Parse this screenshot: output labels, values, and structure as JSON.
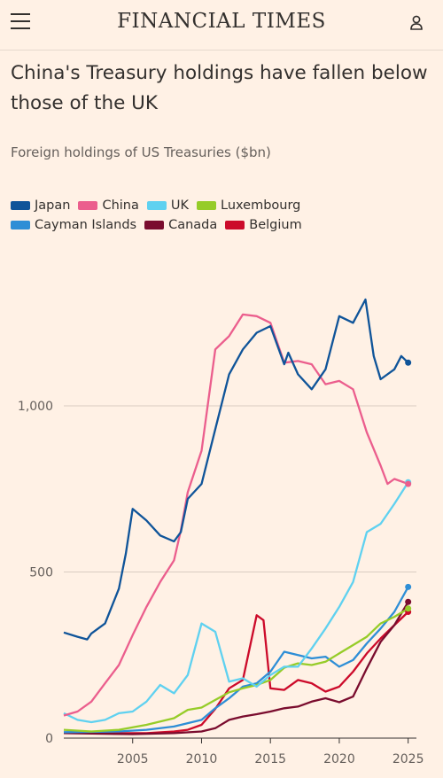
{
  "header": {
    "brand": "FINANCIAL TIMES",
    "menu_icon": "hamburger-menu-icon",
    "user_icon": "user-account-icon"
  },
  "colors": {
    "background": "#fff1e5",
    "gridline": "#d9ccc1"
  },
  "chart_data": {
    "type": "line",
    "title": "China's Treasury holdings have fallen below those of the UK",
    "subtitle": "Foreign holdings of US Treasuries ($bn)",
    "xlabel": "",
    "ylabel": "",
    "x_ticks": [
      "2005",
      "2010",
      "2015",
      "2020",
      "2025"
    ],
    "y_ticks": [
      "0",
      "500",
      "1,000"
    ],
    "xlim": [
      2000,
      2025.6
    ],
    "ylim": [
      0,
      1300
    ],
    "grid": "horizontal",
    "legend_position": "top-left",
    "series": [
      {
        "name": "Japan",
        "color": "#0f5499",
        "points": [
          [
            2000,
            318
          ],
          [
            2001,
            305
          ],
          [
            2001.7,
            297
          ],
          [
            2002,
            315
          ],
          [
            2003,
            345
          ],
          [
            2004,
            450
          ],
          [
            2004.5,
            555
          ],
          [
            2005,
            690
          ],
          [
            2006,
            655
          ],
          [
            2007,
            610
          ],
          [
            2008,
            592
          ],
          [
            2008.5,
            620
          ],
          [
            2009,
            720
          ],
          [
            2010,
            765
          ],
          [
            2011,
            930
          ],
          [
            2012,
            1095
          ],
          [
            2013,
            1170
          ],
          [
            2014,
            1220
          ],
          [
            2015,
            1240
          ],
          [
            2016,
            1125
          ],
          [
            2016.3,
            1160
          ],
          [
            2017,
            1095
          ],
          [
            2018,
            1050
          ],
          [
            2019,
            1110
          ],
          [
            2020,
            1270
          ],
          [
            2021,
            1250
          ],
          [
            2021.9,
            1320
          ],
          [
            2022.5,
            1150
          ],
          [
            2023,
            1080
          ],
          [
            2024,
            1110
          ],
          [
            2024.5,
            1150
          ],
          [
            2025,
            1130
          ]
        ]
      },
      {
        "name": "China",
        "color": "#eb5e8d",
        "points": [
          [
            2000,
            68
          ],
          [
            2001,
            80
          ],
          [
            2002,
            110
          ],
          [
            2003,
            165
          ],
          [
            2004,
            220
          ],
          [
            2005,
            310
          ],
          [
            2006,
            395
          ],
          [
            2007,
            470
          ],
          [
            2008,
            535
          ],
          [
            2008.5,
            625
          ],
          [
            2009,
            740
          ],
          [
            2010,
            865
          ],
          [
            2011,
            1170
          ],
          [
            2012,
            1210
          ],
          [
            2013,
            1275
          ],
          [
            2014,
            1270
          ],
          [
            2015,
            1250
          ],
          [
            2016,
            1130
          ],
          [
            2017,
            1135
          ],
          [
            2018,
            1125
          ],
          [
            2019,
            1065
          ],
          [
            2020,
            1075
          ],
          [
            2021,
            1050
          ],
          [
            2022,
            920
          ],
          [
            2023,
            820
          ],
          [
            2023.5,
            765
          ],
          [
            2024,
            780
          ],
          [
            2025,
            765
          ]
        ]
      },
      {
        "name": "UK",
        "color": "#5fd1f0",
        "points": [
          [
            2000,
            75
          ],
          [
            2001,
            55
          ],
          [
            2002,
            48
          ],
          [
            2003,
            55
          ],
          [
            2004,
            75
          ],
          [
            2005,
            80
          ],
          [
            2006,
            110
          ],
          [
            2007,
            160
          ],
          [
            2008,
            135
          ],
          [
            2009,
            190
          ],
          [
            2010,
            345
          ],
          [
            2011,
            320
          ],
          [
            2012,
            170
          ],
          [
            2013,
            180
          ],
          [
            2014,
            155
          ],
          [
            2015,
            190
          ],
          [
            2016,
            215
          ],
          [
            2017,
            215
          ],
          [
            2018,
            270
          ],
          [
            2019,
            330
          ],
          [
            2020,
            395
          ],
          [
            2021,
            470
          ],
          [
            2022,
            620
          ],
          [
            2023,
            645
          ],
          [
            2024,
            705
          ],
          [
            2025,
            770
          ]
        ]
      },
      {
        "name": "Luxembourg",
        "color": "#96cc28",
        "points": [
          [
            2000,
            25
          ],
          [
            2002,
            20
          ],
          [
            2004,
            25
          ],
          [
            2006,
            40
          ],
          [
            2008,
            60
          ],
          [
            2009,
            85
          ],
          [
            2010,
            92
          ],
          [
            2011,
            115
          ],
          [
            2012,
            138
          ],
          [
            2013,
            150
          ],
          [
            2014,
            160
          ],
          [
            2015,
            175
          ],
          [
            2016,
            212
          ],
          [
            2017,
            225
          ],
          [
            2018,
            220
          ],
          [
            2019,
            230
          ],
          [
            2020,
            255
          ],
          [
            2021,
            280
          ],
          [
            2022,
            305
          ],
          [
            2023,
            345
          ],
          [
            2024,
            365
          ],
          [
            2025,
            390
          ]
        ]
      },
      {
        "name": "Cayman Islands",
        "color": "#2e8ed6",
        "points": [
          [
            2000,
            18
          ],
          [
            2004,
            20
          ],
          [
            2006,
            25
          ],
          [
            2008,
            35
          ],
          [
            2010,
            55
          ],
          [
            2011,
            90
          ],
          [
            2012,
            120
          ],
          [
            2013,
            155
          ],
          [
            2014,
            165
          ],
          [
            2015,
            200
          ],
          [
            2016,
            260
          ],
          [
            2017,
            250
          ],
          [
            2018,
            240
          ],
          [
            2019,
            245
          ],
          [
            2020,
            215
          ],
          [
            2021,
            235
          ],
          [
            2022,
            285
          ],
          [
            2023,
            330
          ],
          [
            2024,
            380
          ],
          [
            2025,
            455
          ]
        ]
      },
      {
        "name": "Canada",
        "color": "#7a0c2e",
        "points": [
          [
            2000,
            15
          ],
          [
            2005,
            12
          ],
          [
            2008,
            15
          ],
          [
            2010,
            20
          ],
          [
            2011,
            30
          ],
          [
            2012,
            55
          ],
          [
            2013,
            65
          ],
          [
            2014,
            72
          ],
          [
            2015,
            80
          ],
          [
            2016,
            90
          ],
          [
            2017,
            95
          ],
          [
            2018,
            110
          ],
          [
            2019,
            120
          ],
          [
            2020,
            108
          ],
          [
            2021,
            125
          ],
          [
            2022,
            210
          ],
          [
            2023,
            290
          ],
          [
            2024,
            340
          ],
          [
            2025,
            410
          ]
        ]
      },
      {
        "name": "Belgium",
        "color": "#cc0a2a",
        "points": [
          [
            2000,
            15
          ],
          [
            2004,
            15
          ],
          [
            2006,
            15
          ],
          [
            2008,
            20
          ],
          [
            2009,
            25
          ],
          [
            2010,
            40
          ],
          [
            2011,
            88
          ],
          [
            2012,
            150
          ],
          [
            2013,
            175
          ],
          [
            2014,
            370
          ],
          [
            2014.5,
            355
          ],
          [
            2015,
            150
          ],
          [
            2016,
            145
          ],
          [
            2017,
            175
          ],
          [
            2018,
            165
          ],
          [
            2019,
            140
          ],
          [
            2020,
            155
          ],
          [
            2021,
            200
          ],
          [
            2022,
            255
          ],
          [
            2023,
            300
          ],
          [
            2024,
            340
          ],
          [
            2025,
            380
          ]
        ]
      }
    ]
  }
}
